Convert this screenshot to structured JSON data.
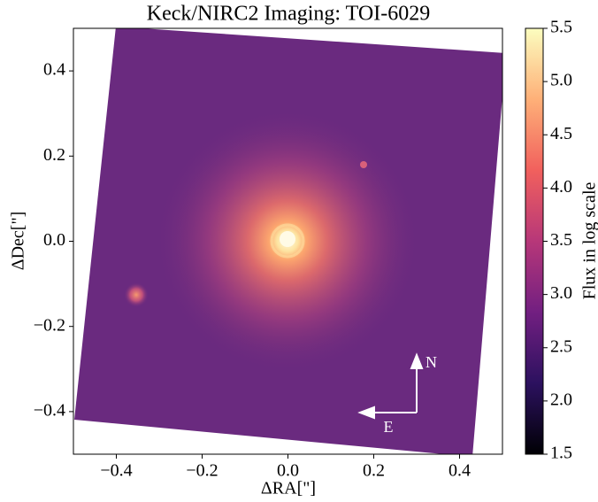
{
  "chart_data": {
    "type": "image",
    "title": "Keck/NIRC2 Imaging: TOI-6029",
    "xlabel": "ΔRA[\"]",
    "ylabel": "ΔDec[\"]",
    "xlim": [
      -0.5,
      0.5
    ],
    "ylim": [
      -0.5,
      0.5
    ],
    "xticks": [
      {
        "value": -0.4,
        "label": "−0.4"
      },
      {
        "value": -0.2,
        "label": "−0.2"
      },
      {
        "value": 0,
        "label": "0.0"
      },
      0.2,
      0.4
    ],
    "yticks": [
      {
        "value": -0.4,
        "label": "−0.4"
      },
      {
        "value": -0.2,
        "label": "−0.2"
      },
      {
        "value": 0,
        "label": "0.0"
      },
      0.2,
      0.4
    ],
    "colorbar": {
      "label": "Flux in log scale",
      "lim": [
        1.5,
        5.5
      ],
      "ticks": [
        1.5,
        {
          "value": 2,
          "label": "2.0"
        },
        2.5,
        {
          "value": 3,
          "label": "3.0"
        },
        3.5,
        {
          "value": 4,
          "label": "4.0"
        },
        4.5,
        {
          "value": 5,
          "label": "5.0"
        },
        5.5
      ],
      "colormap": "magma"
    },
    "annotations": [
      "N",
      "E"
    ]
  }
}
